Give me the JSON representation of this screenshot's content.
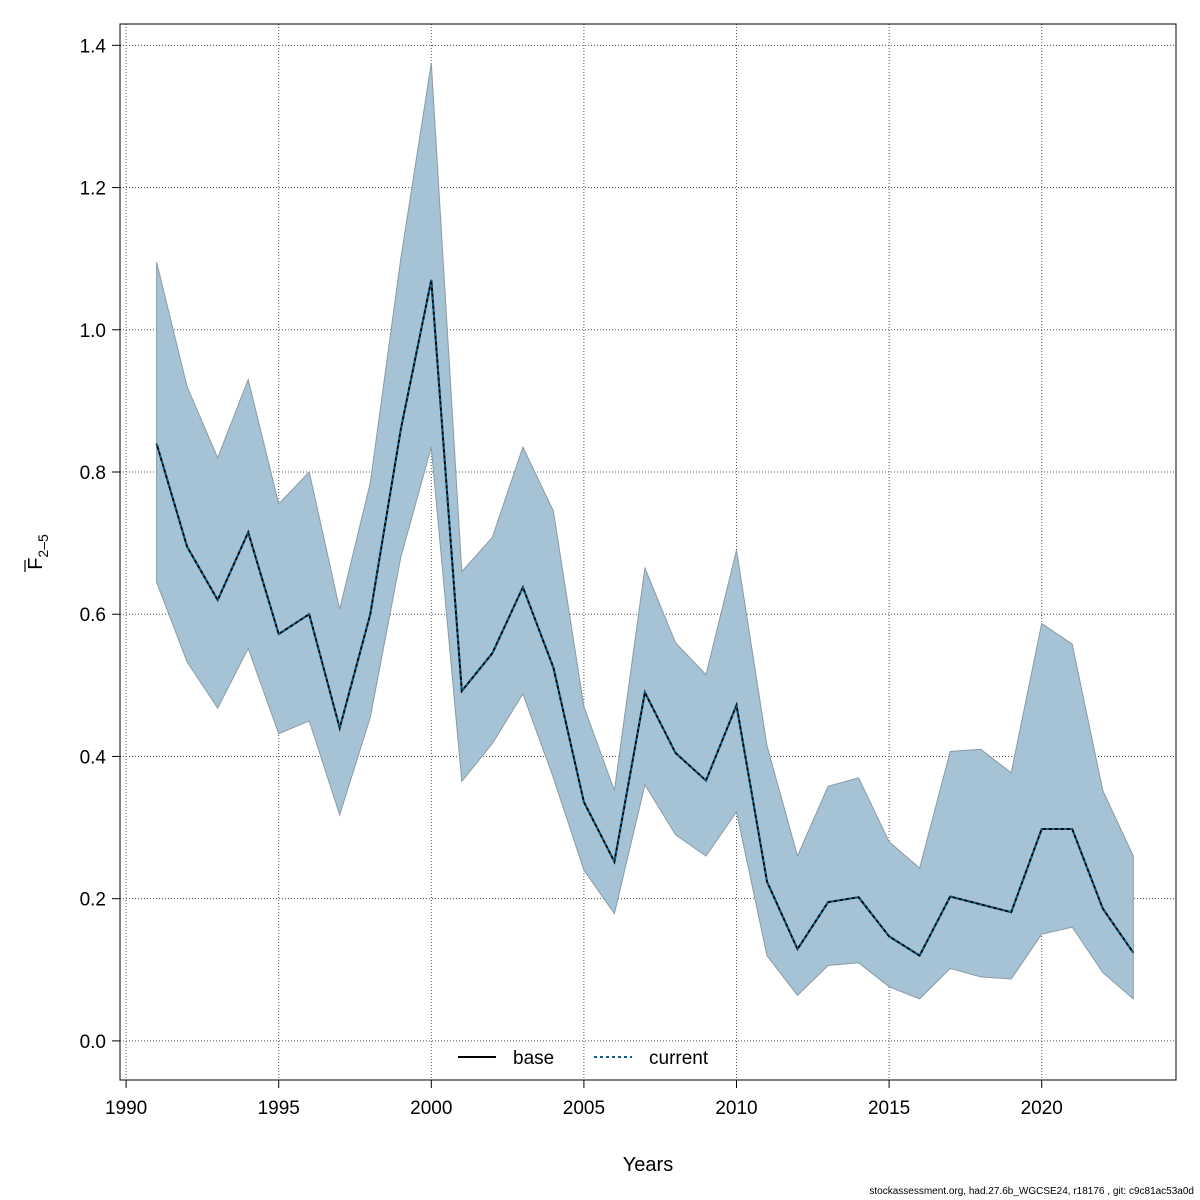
{
  "chart_data": {
    "type": "area",
    "xlabel": "Years",
    "ylabel_main": "F",
    "ylabel_sub": "2–5",
    "xlim": [
      1989.8,
      2024.4
    ],
    "ylim": [
      -0.055,
      1.43
    ],
    "x_ticks": [
      1990,
      1995,
      2000,
      2005,
      2010,
      2015,
      2020
    ],
    "y_ticks": [
      0.0,
      0.2,
      0.4,
      0.6,
      0.8,
      1.0,
      1.2,
      1.4
    ],
    "y_tick_labels": [
      "0.0",
      "0.2",
      "0.4",
      "0.6",
      "0.8",
      "1.0",
      "1.2",
      "1.4"
    ],
    "grid": true,
    "x": [
      1991,
      1992,
      1993,
      1994,
      1995,
      1996,
      1997,
      1998,
      1999,
      2000,
      2001,
      2002,
      2003,
      2004,
      2005,
      2006,
      2007,
      2008,
      2009,
      2010,
      2011,
      2012,
      2013,
      2014,
      2015,
      2016,
      2017,
      2018,
      2019,
      2020,
      2021,
      2022,
      2023
    ],
    "band": {
      "color": "#a5c3d4",
      "upper": [
        1.095,
        0.92,
        0.82,
        0.93,
        0.755,
        0.8,
        0.607,
        0.785,
        1.1,
        1.375,
        0.66,
        0.708,
        0.835,
        0.745,
        0.47,
        0.352,
        0.665,
        0.56,
        0.515,
        0.69,
        0.415,
        0.26,
        0.358,
        0.37,
        0.28,
        0.243,
        0.407,
        0.41,
        0.377,
        0.587,
        0.558,
        0.352,
        0.26
      ],
      "lower": [
        0.645,
        0.533,
        0.468,
        0.552,
        0.432,
        0.45,
        0.318,
        0.455,
        0.68,
        0.835,
        0.365,
        0.418,
        0.488,
        0.37,
        0.24,
        0.179,
        0.36,
        0.29,
        0.26,
        0.322,
        0.12,
        0.064,
        0.106,
        0.11,
        0.076,
        0.059,
        0.102,
        0.09,
        0.087,
        0.15,
        0.16,
        0.096,
        0.059
      ]
    },
    "series": [
      {
        "name": "base",
        "color": "#000000",
        "dash": "solid",
        "values": [
          0.84,
          0.695,
          0.62,
          0.715,
          0.572,
          0.6,
          0.44,
          0.6,
          0.86,
          1.07,
          0.492,
          0.545,
          0.638,
          0.525,
          0.336,
          0.252,
          0.49,
          0.405,
          0.366,
          0.472,
          0.224,
          0.129,
          0.195,
          0.202,
          0.147,
          0.12,
          0.203,
          0.192,
          0.181,
          0.298,
          0.298,
          0.186,
          0.124
        ]
      },
      {
        "name": "current",
        "color": "#0b5f8a",
        "dash": "dotted",
        "values": [
          0.84,
          0.695,
          0.62,
          0.715,
          0.572,
          0.6,
          0.44,
          0.6,
          0.86,
          1.07,
          0.492,
          0.545,
          0.638,
          0.525,
          0.336,
          0.252,
          0.49,
          0.405,
          0.366,
          0.472,
          0.224,
          0.129,
          0.195,
          0.202,
          0.147,
          0.12,
          0.203,
          0.192,
          0.181,
          0.298,
          0.298,
          0.186,
          0.124
        ]
      }
    ],
    "legend": {
      "position": "bottom-center",
      "items": [
        "base",
        "current"
      ]
    }
  },
  "footer": "stockassessment.org, had.27.6b_WGCSE24, r18176 , git: c9c81ac53a0d"
}
